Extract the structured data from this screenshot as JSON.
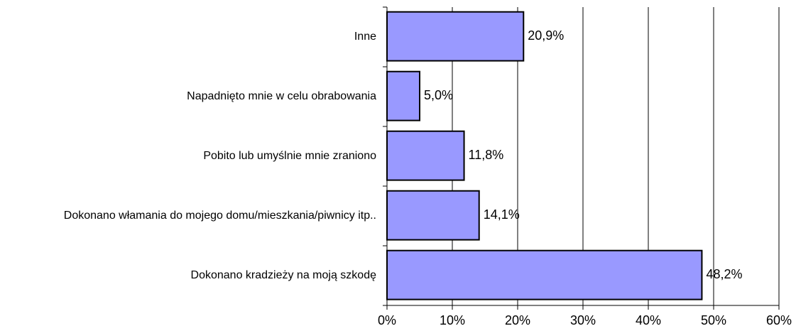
{
  "chart_data": {
    "type": "bar",
    "orientation": "horizontal",
    "categories": [
      "Inne",
      "Napadnięto mnie w celu obrabowania",
      "Pobito lub umyślnie mnie zraniono",
      "Dokonano włamania do mojego domu/mieszkania/piwnicy itp..",
      "Dokonano kradzieży na moją szkodę"
    ],
    "values": [
      20.9,
      5.0,
      11.8,
      14.1,
      48.2
    ],
    "value_labels": [
      "20,9%",
      "5,0%",
      "11,8%",
      "14,1%",
      "48,2%"
    ],
    "color": "#9999ff",
    "xlim": [
      0,
      60
    ],
    "xticks": [
      {
        "value": 0,
        "label": "0%"
      },
      {
        "value": 10,
        "label": "10%"
      },
      {
        "value": 20,
        "label": "20%"
      },
      {
        "value": 30,
        "label": "30%"
      },
      {
        "value": 40,
        "label": "40%"
      },
      {
        "value": 50,
        "label": "50%"
      },
      {
        "value": 60,
        "label": "60%"
      }
    ],
    "grid": true
  }
}
